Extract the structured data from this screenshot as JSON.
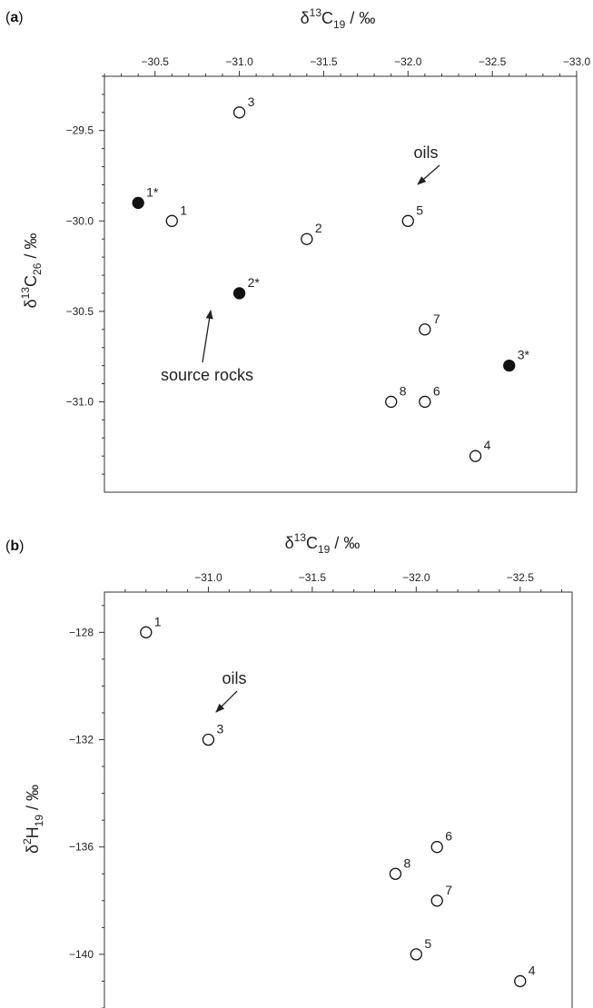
{
  "chart_data": [
    {
      "panel_label": [
        "(",
        "a",
        ")"
      ],
      "type": "scatter",
      "xlabel": {
        "main": "δ",
        "sup": "13",
        "rest": "C",
        "sub": "19",
        "unit": " / ‰"
      },
      "ylabel": {
        "main": "δ",
        "sup": "13",
        "rest": "C",
        "sub": "26",
        "unit": " / ‰"
      },
      "xlim": [
        -30.2,
        -33.0
      ],
      "ylim": [
        -29.2,
        -31.5
      ],
      "x_ticks": [
        -30.5,
        -31.0,
        -31.5,
        -32.0,
        -32.5,
        -33.0
      ],
      "x_tick_labels": [
        "−30.5",
        "−31.0",
        "−31.5",
        "−32.0",
        "−32.5",
        "−33.0"
      ],
      "y_ticks": [
        -29.5,
        -30.0,
        -30.5,
        -31.0
      ],
      "y_tick_labels": [
        "−29.5",
        "−30.0",
        "−30.5",
        "−31.0"
      ],
      "x_axis_position": "top",
      "points": [
        {
          "label": "3",
          "x": -31.0,
          "y": -29.4,
          "filled": false
        },
        {
          "label": "1*",
          "x": -30.4,
          "y": -29.9,
          "filled": true
        },
        {
          "label": "1",
          "x": -30.6,
          "y": -30.0,
          "filled": false
        },
        {
          "label": "2",
          "x": -31.4,
          "y": -30.1,
          "filled": false
        },
        {
          "label": "2*",
          "x": -31.0,
          "y": -30.4,
          "filled": true
        },
        {
          "label": "5",
          "x": -32.0,
          "y": -30.0,
          "filled": false
        },
        {
          "label": "7",
          "x": -32.1,
          "y": -30.6,
          "filled": false
        },
        {
          "label": "3*",
          "x": -32.6,
          "y": -30.8,
          "filled": true
        },
        {
          "label": "8",
          "x": -31.9,
          "y": -31.0,
          "filled": false
        },
        {
          "label": "6",
          "x": -32.1,
          "y": -31.0,
          "filled": false
        },
        {
          "label": "4",
          "x": -32.4,
          "y": -31.3,
          "filled": false
        }
      ],
      "annotations": [
        {
          "text": "oils",
          "points_to": "5"
        },
        {
          "text": "source rocks",
          "points_to": "2*"
        }
      ]
    },
    {
      "panel_label": [
        "(",
        "b",
        ")"
      ],
      "type": "scatter",
      "xlabel": {
        "main": "δ",
        "sup": "13",
        "rest": "C",
        "sub": "19",
        "unit": " / ‰"
      },
      "ylabel": {
        "main": "δ",
        "sup": "2",
        "rest": "H",
        "sub": "19",
        "unit": " / ‰"
      },
      "xlim": [
        -30.5,
        -32.75
      ],
      "ylim": [
        -126.5,
        -142
      ],
      "x_ticks": [
        -31.0,
        -31.5,
        -32.0,
        -32.5
      ],
      "x_tick_labels": [
        "−31.0",
        "−31.5",
        "−32.0",
        "−32.5"
      ],
      "y_ticks": [
        -128,
        -132,
        -136,
        -140
      ],
      "y_tick_labels": [
        "−128",
        "−132",
        "−136",
        "−140"
      ],
      "x_axis_position": "top",
      "points": [
        {
          "label": "1",
          "x": -30.7,
          "y": -128.0,
          "filled": false
        },
        {
          "label": "3",
          "x": -31.0,
          "y": -132.0,
          "filled": false
        },
        {
          "label": "6",
          "x": -32.1,
          "y": -136.0,
          "filled": false
        },
        {
          "label": "8",
          "x": -31.9,
          "y": -137.0,
          "filled": false
        },
        {
          "label": "7",
          "x": -32.1,
          "y": -138.0,
          "filled": false
        },
        {
          "label": "5",
          "x": -32.0,
          "y": -140.0,
          "filled": false
        },
        {
          "label": "4",
          "x": -32.5,
          "y": -141.0,
          "filled": false
        }
      ],
      "annotations": [
        {
          "text": "oils",
          "points_to": "3"
        }
      ]
    }
  ]
}
